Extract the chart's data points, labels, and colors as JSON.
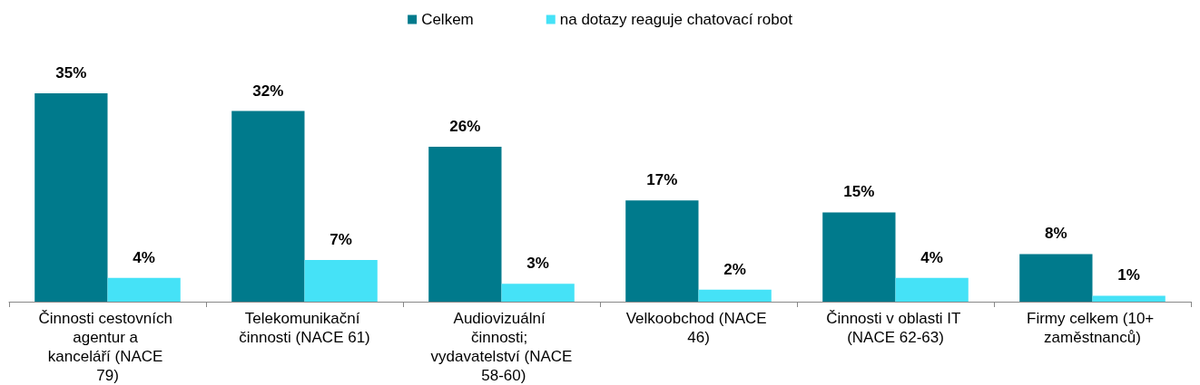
{
  "chart_data": {
    "type": "bar",
    "categories": [
      "Činnosti cestovních agentur a kanceláří (NACE 79)",
      "Telekomunikační činnosti (NACE 61)",
      "Audiovizuální činnosti; vydavatelství (NACE 58-60)",
      "Velkoobchod (NACE 46)",
      "Činnosti v oblasti IT (NACE 62-63)",
      "Firmy celkem (10+ zaměstnanců)"
    ],
    "series": [
      {
        "name": "Celkem",
        "color": "#007a8c",
        "values": [
          35,
          32,
          26,
          17,
          15,
          8
        ],
        "value_labels": [
          "35%",
          "32%",
          "26%",
          "17%",
          "15%",
          "8%"
        ]
      },
      {
        "name": "na dotazy reaguje chatovací robot",
        "color": "#45e2f7",
        "values": [
          4,
          7,
          3,
          2,
          4,
          1
        ],
        "value_labels": [
          "4%",
          "7%",
          "3%",
          "2%",
          "4%",
          "1%"
        ]
      }
    ],
    "legend": "top",
    "grid": false
  }
}
